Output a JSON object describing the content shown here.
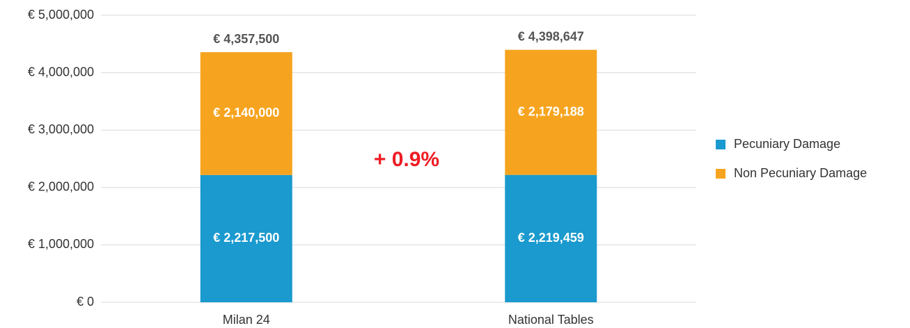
{
  "chart_data": {
    "type": "stacked_bar",
    "categories": [
      "Milan 24",
      "National Tables"
    ],
    "series": [
      {
        "name": "Pecuniary Damage",
        "color": "#1a9ace",
        "values": [
          2217500,
          2219459
        ],
        "value_labels": [
          "€ 2,217,500",
          "€ 2,219,459"
        ]
      },
      {
        "name": "Non Pecuniary Damage",
        "color": "#f6a41f",
        "values": [
          2140000,
          2179188
        ],
        "value_labels": [
          "€ 2,140,000",
          "€ 2,179,188"
        ]
      }
    ],
    "totals": [
      4357500,
      4398647
    ],
    "total_labels": [
      "€ 4,357,500",
      "€ 4,398,647"
    ],
    "annotation": "+ 0.9%",
    "ylim": [
      0,
      5000000
    ],
    "yticks": [
      {
        "value": 0,
        "label": "€ 0"
      },
      {
        "value": 1000000,
        "label": "€ 1,000,000"
      },
      {
        "value": 2000000,
        "label": "€ 2,000,000"
      },
      {
        "value": 3000000,
        "label": "€ 3,000,000"
      },
      {
        "value": 4000000,
        "label": "€ 4,000,000"
      },
      {
        "value": 5000000,
        "label": "€ 5,000,000"
      }
    ],
    "grid": true,
    "legend": "right"
  }
}
